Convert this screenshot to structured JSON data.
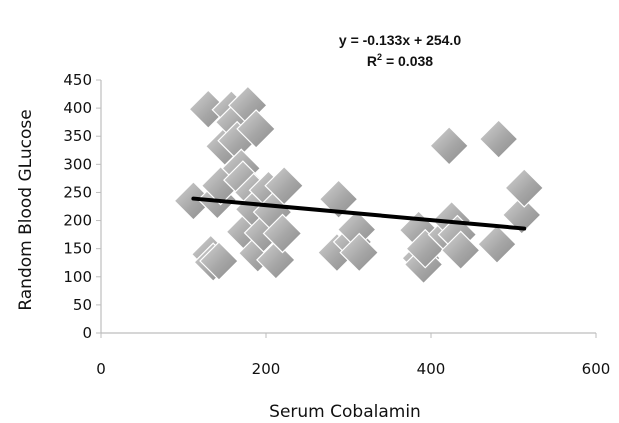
{
  "chart_data": {
    "type": "scatter",
    "title": "",
    "xlabel": "Serum Cobalamin",
    "ylabel": "Random Blood GLucose",
    "xlim": [
      0,
      600
    ],
    "ylim": [
      0,
      450
    ],
    "x_ticks": [
      0,
      200,
      400,
      600
    ],
    "y_ticks": [
      0,
      50,
      100,
      150,
      200,
      250,
      300,
      350,
      400,
      450
    ],
    "grid": false,
    "legend": "none",
    "marker": "diamond",
    "marker_color": "#a6a6a6",
    "trendline_color": "#000000",
    "annotations": {
      "equation": "y = -0.133x + 254.0",
      "r_squared_prefix": "R",
      "r_squared_exp": "2",
      "r_squared_suffix": " = 0.038"
    },
    "trendline": {
      "slope": -0.133,
      "intercept": 254.0,
      "x_range": [
        112,
        513
      ]
    },
    "points": [
      {
        "x": 112,
        "y": 235
      },
      {
        "x": 130,
        "y": 398
      },
      {
        "x": 133,
        "y": 140
      },
      {
        "x": 136,
        "y": 126
      },
      {
        "x": 141,
        "y": 237
      },
      {
        "x": 143,
        "y": 128
      },
      {
        "x": 145,
        "y": 262
      },
      {
        "x": 150,
        "y": 332
      },
      {
        "x": 158,
        "y": 397
      },
      {
        "x": 162,
        "y": 375
      },
      {
        "x": 165,
        "y": 342
      },
      {
        "x": 170,
        "y": 293
      },
      {
        "x": 172,
        "y": 272
      },
      {
        "x": 175,
        "y": 180
      },
      {
        "x": 178,
        "y": 405
      },
      {
        "x": 185,
        "y": 250
      },
      {
        "x": 186,
        "y": 220
      },
      {
        "x": 188,
        "y": 363
      },
      {
        "x": 190,
        "y": 142
      },
      {
        "x": 197,
        "y": 178
      },
      {
        "x": 203,
        "y": 254
      },
      {
        "x": 208,
        "y": 215
      },
      {
        "x": 212,
        "y": 130
      },
      {
        "x": 220,
        "y": 177
      },
      {
        "x": 222,
        "y": 262
      },
      {
        "x": 286,
        "y": 143
      },
      {
        "x": 288,
        "y": 238
      },
      {
        "x": 305,
        "y": 162
      },
      {
        "x": 310,
        "y": 184
      },
      {
        "x": 313,
        "y": 143
      },
      {
        "x": 385,
        "y": 183
      },
      {
        "x": 388,
        "y": 133
      },
      {
        "x": 391,
        "y": 122
      },
      {
        "x": 393,
        "y": 150
      },
      {
        "x": 420,
        "y": 175
      },
      {
        "x": 422,
        "y": 333
      },
      {
        "x": 425,
        "y": 200
      },
      {
        "x": 432,
        "y": 175
      },
      {
        "x": 436,
        "y": 147
      },
      {
        "x": 480,
        "y": 158
      },
      {
        "x": 482,
        "y": 345
      },
      {
        "x": 510,
        "y": 210
      },
      {
        "x": 513,
        "y": 258
      }
    ]
  }
}
